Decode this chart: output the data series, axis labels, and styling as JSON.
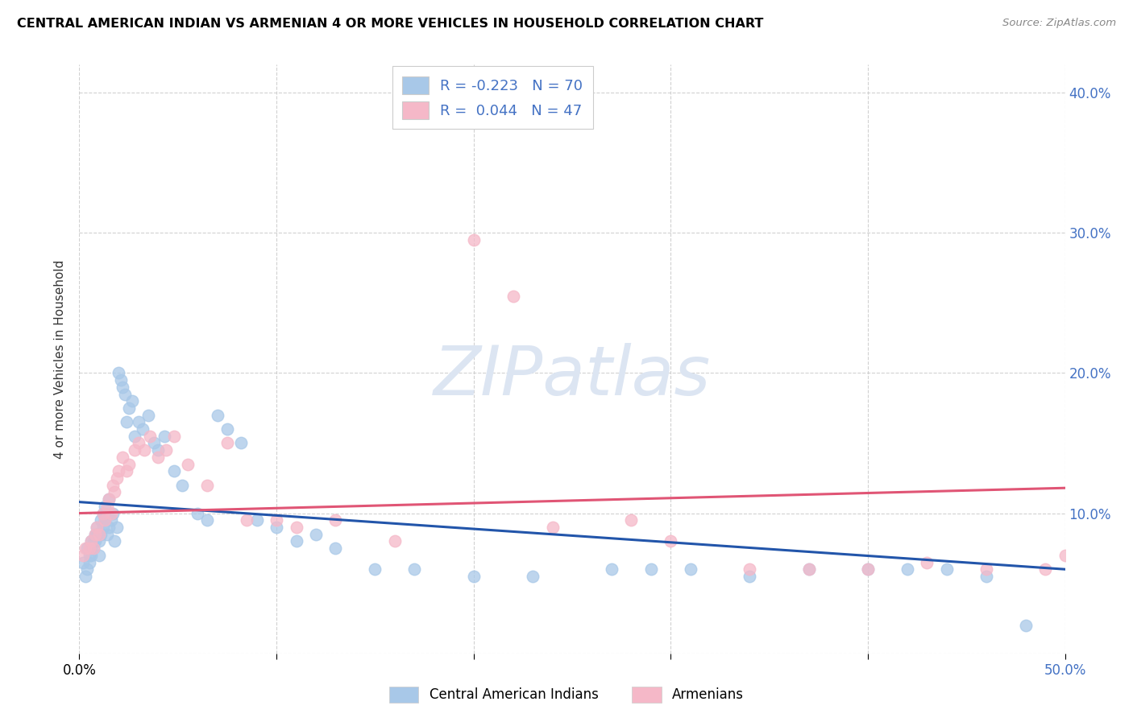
{
  "title": "CENTRAL AMERICAN INDIAN VS ARMENIAN 4 OR MORE VEHICLES IN HOUSEHOLD CORRELATION CHART",
  "source": "Source: ZipAtlas.com",
  "ylabel": "4 or more Vehicles in Household",
  "xlim": [
    0.0,
    0.5
  ],
  "ylim": [
    0.0,
    0.42
  ],
  "xticks": [
    0.0,
    0.1,
    0.2,
    0.3,
    0.4,
    0.5
  ],
  "yticks": [
    0.0,
    0.1,
    0.2,
    0.3,
    0.4
  ],
  "r1": -0.223,
  "n1": 70,
  "r2": 0.044,
  "n2": 47,
  "blue_color": "#a8c8e8",
  "pink_color": "#f5b8c8",
  "blue_line_color": "#2255aa",
  "pink_line_color": "#e05575",
  "dashed_color": "#88aacc",
  "watermark_color": "#dce5f2",
  "legend_label1": "Central American Indians",
  "legend_label2": "Armenians",
  "blue_x": [
    0.002,
    0.003,
    0.004,
    0.004,
    0.005,
    0.005,
    0.006,
    0.006,
    0.006,
    0.007,
    0.007,
    0.008,
    0.008,
    0.009,
    0.009,
    0.01,
    0.01,
    0.011,
    0.011,
    0.012,
    0.012,
    0.013,
    0.013,
    0.014,
    0.015,
    0.015,
    0.016,
    0.017,
    0.018,
    0.019,
    0.02,
    0.021,
    0.022,
    0.023,
    0.024,
    0.025,
    0.027,
    0.028,
    0.03,
    0.032,
    0.035,
    0.038,
    0.04,
    0.043,
    0.048,
    0.052,
    0.06,
    0.065,
    0.07,
    0.075,
    0.082,
    0.09,
    0.1,
    0.11,
    0.12,
    0.13,
    0.15,
    0.17,
    0.2,
    0.23,
    0.27,
    0.29,
    0.31,
    0.34,
    0.37,
    0.4,
    0.42,
    0.44,
    0.46,
    0.48
  ],
  "blue_y": [
    0.065,
    0.055,
    0.06,
    0.075,
    0.07,
    0.065,
    0.08,
    0.075,
    0.07,
    0.08,
    0.075,
    0.085,
    0.08,
    0.09,
    0.085,
    0.07,
    0.08,
    0.095,
    0.085,
    0.1,
    0.09,
    0.095,
    0.105,
    0.085,
    0.11,
    0.09,
    0.095,
    0.1,
    0.08,
    0.09,
    0.2,
    0.195,
    0.19,
    0.185,
    0.165,
    0.175,
    0.18,
    0.155,
    0.165,
    0.16,
    0.17,
    0.15,
    0.145,
    0.155,
    0.13,
    0.12,
    0.1,
    0.095,
    0.17,
    0.16,
    0.15,
    0.095,
    0.09,
    0.08,
    0.085,
    0.075,
    0.06,
    0.06,
    0.055,
    0.055,
    0.06,
    0.06,
    0.06,
    0.055,
    0.06,
    0.06,
    0.06,
    0.06,
    0.055,
    0.02
  ],
  "pink_x": [
    0.002,
    0.003,
    0.005,
    0.006,
    0.007,
    0.008,
    0.009,
    0.01,
    0.012,
    0.013,
    0.014,
    0.015,
    0.016,
    0.017,
    0.018,
    0.019,
    0.02,
    0.022,
    0.024,
    0.025,
    0.028,
    0.03,
    0.033,
    0.036,
    0.04,
    0.044,
    0.048,
    0.055,
    0.065,
    0.075,
    0.085,
    0.1,
    0.11,
    0.13,
    0.16,
    0.2,
    0.22,
    0.24,
    0.28,
    0.3,
    0.34,
    0.37,
    0.4,
    0.43,
    0.46,
    0.49,
    0.5
  ],
  "pink_y": [
    0.07,
    0.075,
    0.075,
    0.08,
    0.075,
    0.085,
    0.09,
    0.085,
    0.1,
    0.095,
    0.105,
    0.11,
    0.1,
    0.12,
    0.115,
    0.125,
    0.13,
    0.14,
    0.13,
    0.135,
    0.145,
    0.15,
    0.145,
    0.155,
    0.14,
    0.145,
    0.155,
    0.135,
    0.12,
    0.15,
    0.095,
    0.095,
    0.09,
    0.095,
    0.08,
    0.295,
    0.255,
    0.09,
    0.095,
    0.08,
    0.06,
    0.06,
    0.06,
    0.065,
    0.06,
    0.06,
    0.07
  ]
}
